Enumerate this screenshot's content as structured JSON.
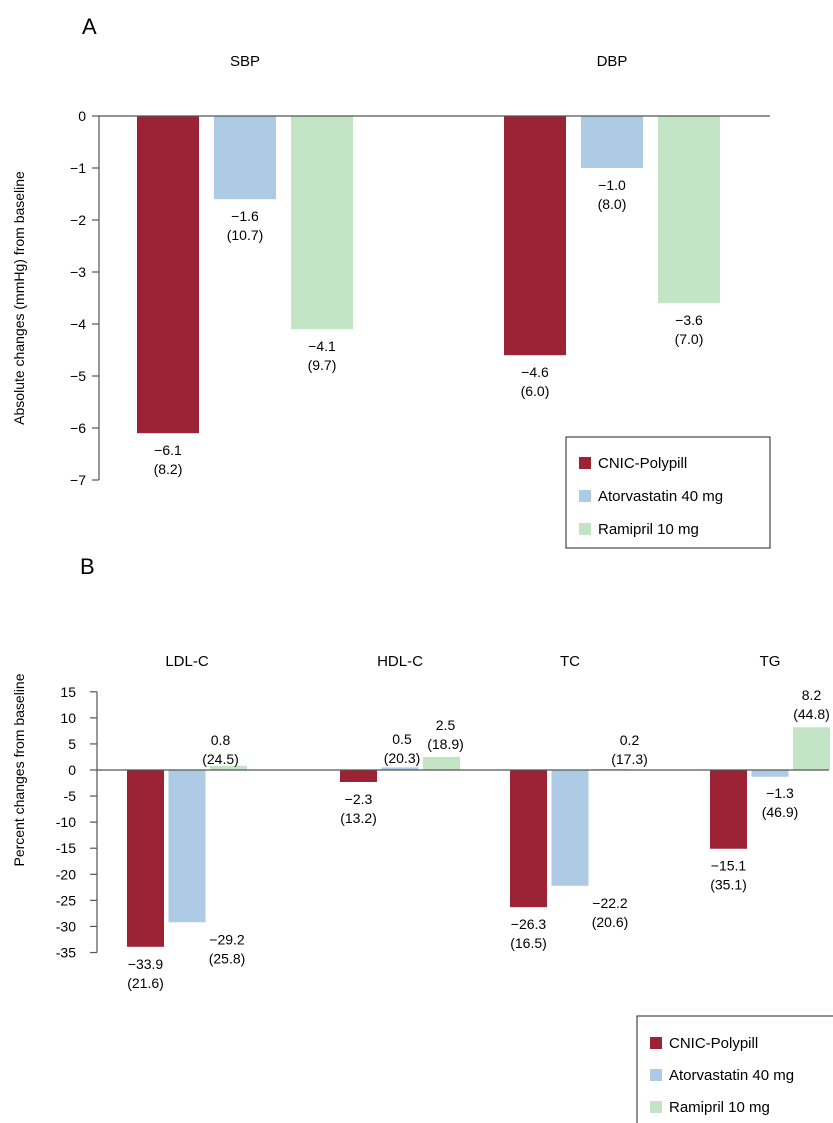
{
  "panels": {
    "a": {
      "letter": "A"
    },
    "b": {
      "letter": "B"
    }
  },
  "colors": {
    "CNIC-Polypill": "#9b2335",
    "Atorvastatin 40 mg": "#aecbe6",
    "Ramipril 10 mg": "#c3e4c5",
    "axis": "#555555"
  },
  "chart_data": [
    {
      "type": "bar",
      "panel": "A",
      "ylabel": "Absolute changes (mmHg) from baseline",
      "ylim": [
        -7,
        0
      ],
      "yticks": [
        "0",
        "−1",
        "−2",
        "−3",
        "−4",
        "−5",
        "−6",
        "−7"
      ],
      "categories": [
        "SBP",
        "DBP"
      ],
      "series": [
        {
          "name": "CNIC-Polypill",
          "values": [
            -6.1,
            -4.6
          ],
          "labels": [
            "−6.1",
            "−4.6"
          ],
          "sd": [
            "(8.2)",
            "(6.0)"
          ]
        },
        {
          "name": "Atorvastatin 40 mg",
          "values": [
            -1.6,
            -1.0
          ],
          "labels": [
            "−1.6",
            "−1.0"
          ],
          "sd": [
            "(10.7)",
            "(8.0)"
          ]
        },
        {
          "name": "Ramipril 10 mg",
          "values": [
            -4.1,
            -3.6
          ],
          "labels": [
            "−4.1",
            "−3.6"
          ],
          "sd": [
            "(9.7)",
            "(7.0)"
          ]
        }
      ],
      "legend": [
        "CNIC-Polypill",
        "Atorvastatin 40 mg",
        "Ramipril 10 mg"
      ],
      "legend_position": "bottom-right"
    },
    {
      "type": "bar",
      "panel": "B",
      "ylabel": "Percent changes from baseline",
      "ylim": [
        -35,
        15
      ],
      "yticks": [
        "15",
        "10",
        "5",
        "0",
        "-5",
        "-10",
        "-15",
        "-20",
        "-25",
        "-30",
        "-35"
      ],
      "categories": [
        "LDL-C",
        "HDL-C",
        "TC",
        "TG"
      ],
      "series": [
        {
          "name": "CNIC-Polypill",
          "values": [
            -33.9,
            -2.3,
            -26.3,
            -15.1
          ],
          "labels": [
            "−33.9",
            "−2.3",
            "−26.3",
            "−15.1"
          ],
          "sd": [
            "(21.6)",
            "(13.2)",
            "(16.5)",
            "(35.1)"
          ]
        },
        {
          "name": "Atorvastatin 40 mg",
          "values": [
            -29.2,
            0.5,
            -22.2,
            -1.3
          ],
          "labels": [
            "−29.2",
            "0.5",
            "−22.2",
            "−1.3"
          ],
          "sd": [
            "(25.8)",
            "(20.3)",
            "(20.6)",
            "(46.9)"
          ]
        },
        {
          "name": "Ramipril 10 mg",
          "values": [
            0.8,
            2.5,
            0.2,
            8.2
          ],
          "labels": [
            "0.8",
            "2.5",
            "0.2",
            "8.2"
          ],
          "sd": [
            "(24.5)",
            "(18.9)",
            "(17.3)",
            "(44.8)"
          ]
        }
      ],
      "legend": [
        "CNIC-Polypill",
        "Atorvastatin 40 mg",
        "Ramipril 10 mg"
      ],
      "legend_position": "bottom-right"
    }
  ]
}
